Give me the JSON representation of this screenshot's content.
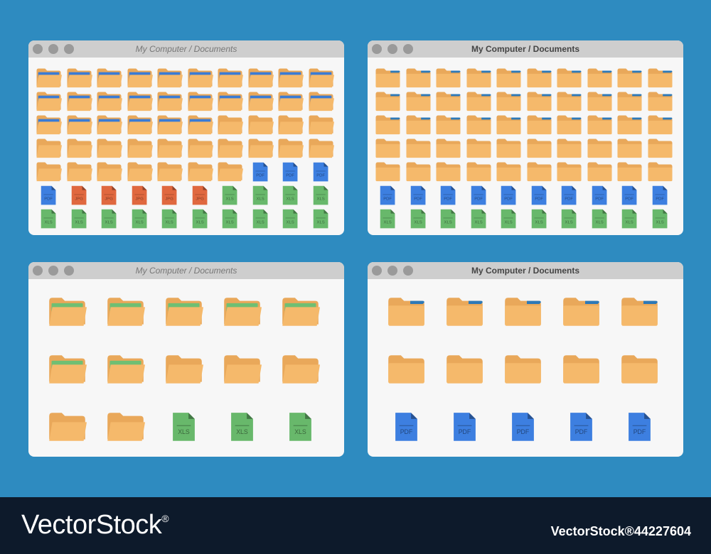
{
  "windows": [
    {
      "title": "My Computer / Documents",
      "title_style": "italic",
      "cols": 10,
      "rows": [
        [
          "folder-blue",
          "folder-blue",
          "folder-blue",
          "folder-blue",
          "folder-blue",
          "folder-blue",
          "folder-blue",
          "folder-blue",
          "folder-blue",
          "folder-blue"
        ],
        [
          "folder-blue",
          "folder-blue",
          "folder-blue",
          "folder-blue",
          "folder-blue",
          "folder-blue",
          "folder-blue",
          "folder-blue",
          "folder-blue",
          "folder-blue"
        ],
        [
          "folder-blue",
          "folder-blue",
          "folder-blue",
          "folder-blue",
          "folder-blue",
          "folder-blue",
          "folder",
          "folder",
          "folder",
          "folder"
        ],
        [
          "folder",
          "folder",
          "folder",
          "folder",
          "folder",
          "folder",
          "folder",
          "folder",
          "folder",
          "folder"
        ],
        [
          "folder",
          "folder",
          "folder",
          "folder",
          "folder",
          "folder",
          "folder",
          "pdf",
          "pdf",
          "pdf"
        ],
        [
          "pdf",
          "jpg",
          "jpg",
          "jpg",
          "jpg",
          "jpg",
          "xls",
          "xls",
          "xls",
          "xls"
        ],
        [
          "xls",
          "xls",
          "xls",
          "xls",
          "xls",
          "xls",
          "xls",
          "xls",
          "xls",
          "xls"
        ]
      ]
    },
    {
      "title": "My Computer / Documents",
      "title_style": "bold",
      "cols": 10,
      "rows": [
        [
          "folder-tab",
          "folder-tab",
          "folder-tab",
          "folder-tab",
          "folder-tab",
          "folder-tab",
          "folder-tab",
          "folder-tab",
          "folder-tab",
          "folder-tab"
        ],
        [
          "folder-tab",
          "folder-tab",
          "folder-tab",
          "folder-tab",
          "folder-tab",
          "folder-tab",
          "folder-tab",
          "folder-tab",
          "folder-tab",
          "folder-tab"
        ],
        [
          "folder-tab",
          "folder-tab",
          "folder-tab",
          "folder-tab",
          "folder-tab",
          "folder-tab",
          "folder-tab",
          "folder-tab",
          "folder-tab",
          "folder-tab"
        ],
        [
          "folder-flat",
          "folder-flat",
          "folder-flat",
          "folder-flat",
          "folder-flat",
          "folder-flat",
          "folder-flat",
          "folder-flat",
          "folder-flat",
          "folder-flat"
        ],
        [
          "folder-flat",
          "folder-flat",
          "folder-flat",
          "folder-flat",
          "folder-flat",
          "folder-flat",
          "folder-flat",
          "folder-flat",
          "folder-flat",
          "folder-flat"
        ],
        [
          "pdf",
          "pdf",
          "pdf",
          "pdf",
          "pdf",
          "pdf",
          "pdf",
          "pdf",
          "pdf",
          "pdf"
        ],
        [
          "xls",
          "xls",
          "xls",
          "xls",
          "xls",
          "xls",
          "xls",
          "xls",
          "xls",
          "xls"
        ]
      ]
    },
    {
      "title": "My Computer / Documents",
      "title_style": "italic",
      "cols": 5,
      "rows": [
        [
          "folder-green",
          "folder-green",
          "folder-green",
          "folder-green",
          "folder-green"
        ],
        [
          "folder-green",
          "folder-green",
          "folder",
          "folder",
          "folder"
        ],
        [
          "folder",
          "folder",
          "xls",
          "xls",
          "xls"
        ]
      ]
    },
    {
      "title": "My Computer / Documents",
      "title_style": "bold",
      "cols": 5,
      "rows": [
        [
          "folder-tab",
          "folder-tab",
          "folder-tab",
          "folder-tab",
          "folder-tab"
        ],
        [
          "folder-flat",
          "folder-flat",
          "folder-flat",
          "folder-flat",
          "folder-flat"
        ],
        [
          "pdf",
          "pdf",
          "pdf",
          "pdf",
          "pdf"
        ]
      ]
    }
  ],
  "file_labels": {
    "pdf": "PDF",
    "jpg": "JPG",
    "xls": "XLS"
  },
  "colors": {
    "background": "#2e8bc0",
    "folder": "#f5b96b",
    "folder_back": "#e9a85a",
    "paper_blue": "#3a7bd5",
    "paper_green": "#6fbf73",
    "pdf": "#3d7fe0",
    "jpg": "#e0683f",
    "xls": "#68b86b"
  },
  "footer": {
    "brand": "VectorStock",
    "registered": "®",
    "image_id": "VectorStock®44227604"
  }
}
